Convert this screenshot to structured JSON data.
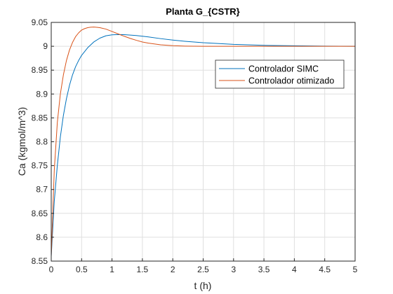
{
  "chart_data": {
    "type": "line",
    "title": "Planta G_{CSTR}",
    "xlabel": "t (h)",
    "ylabel": "Ca (kgmol/m^3)",
    "xlim": [
      0,
      5
    ],
    "ylim": [
      8.55,
      9.05
    ],
    "xticks": [
      "0",
      "0.5",
      "1",
      "1.5",
      "2",
      "2.5",
      "3",
      "3.5",
      "4",
      "4.5",
      "5"
    ],
    "yticks": [
      "8.55",
      "8.6",
      "8.65",
      "8.7",
      "8.75",
      "8.8",
      "8.85",
      "8.9",
      "8.95",
      "9",
      "9.05"
    ],
    "grid": true,
    "legend_position": "upper-right",
    "series": [
      {
        "name": "Controlador SIMC",
        "color": "#0072BD",
        "x": [
          0,
          0.05,
          0.1,
          0.15,
          0.2,
          0.25,
          0.3,
          0.35,
          0.4,
          0.45,
          0.5,
          0.6,
          0.7,
          0.8,
          0.9,
          1.0,
          1.1,
          1.2,
          1.4,
          1.6,
          1.8,
          2.0,
          2.2,
          2.5,
          3.0,
          3.5,
          4.0,
          4.5,
          5.0
        ],
        "y": [
          8.56,
          8.675,
          8.75,
          8.81,
          8.855,
          8.89,
          8.918,
          8.94,
          8.957,
          8.97,
          8.981,
          8.997,
          9.009,
          9.017,
          9.022,
          9.024,
          9.0245,
          9.0243,
          9.0225,
          9.0195,
          9.016,
          9.013,
          9.0105,
          9.0075,
          9.004,
          9.002,
          9.001,
          9.0003,
          9.0
        ]
      },
      {
        "name": "Controlador otimizado",
        "color": "#D95319",
        "x": [
          0,
          0.05,
          0.1,
          0.15,
          0.2,
          0.25,
          0.3,
          0.35,
          0.4,
          0.45,
          0.5,
          0.55,
          0.6,
          0.65,
          0.7,
          0.75,
          0.8,
          0.9,
          1.0,
          1.1,
          1.2,
          1.3,
          1.4,
          1.5,
          1.6,
          1.8,
          2.0,
          2.2,
          2.5,
          3.0,
          3.5,
          4.0,
          5.0
        ],
        "y": [
          8.56,
          8.74,
          8.84,
          8.9,
          8.94,
          8.97,
          8.992,
          9.008,
          9.02,
          9.028,
          9.034,
          9.037,
          9.039,
          9.04,
          9.0402,
          9.0398,
          9.039,
          9.036,
          9.031,
          9.026,
          9.021,
          9.0165,
          9.0125,
          9.009,
          9.0065,
          9.003,
          9.0012,
          9.0004,
          9.0,
          9.0,
          9.0,
          9.0,
          9.0
        ]
      }
    ]
  }
}
